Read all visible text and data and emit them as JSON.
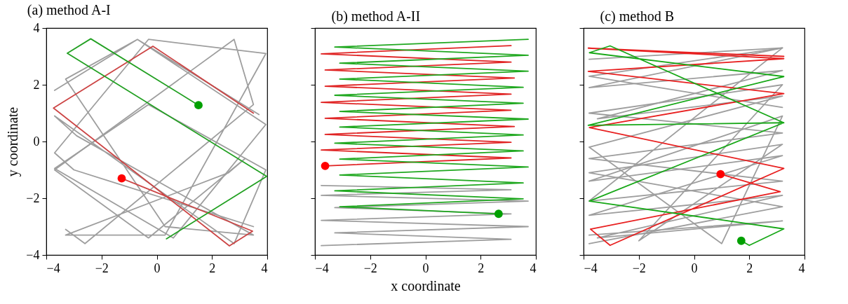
{
  "chart_data": [
    {
      "type": "line",
      "title": "(a) method A-I",
      "ylabel": "y coordinate",
      "xlim": [
        -4,
        4
      ],
      "ylim": [
        -4,
        4
      ],
      "xticks": [
        -4,
        -2,
        0,
        2,
        4
      ],
      "yticks": [
        -4,
        -2,
        0,
        2,
        4
      ],
      "series": [
        {
          "color": "#9e9e9e",
          "x": [
            -3.7,
            -0.7,
            3.95,
            0.6,
            -3.7,
            -0.3,
            3.95,
            2.8,
            -3.7,
            -2.9,
            3.5,
            0.3,
            -3.3,
            -0.7,
            3.7
          ],
          "values": [
            1.8,
            3.6,
            0.6,
            -3.4,
            -0.95,
            1.3,
            -1.0,
            -3.6,
            0.9,
            0.2,
            -3.3,
            -3.0,
            2.2,
            3.6,
            0.95
          ]
        },
        {
          "color": "#9e9e9e",
          "x": [
            -3.3,
            -2.6,
            3.5,
            2.8,
            -3.7,
            -0.3,
            3.2,
            2.6,
            -3.3,
            0.3,
            3.95,
            -0.3,
            -3.7,
            -3.0,
            3.5
          ],
          "values": [
            -3.1,
            -3.6,
            1.3,
            3.6,
            -1.0,
            -3.4,
            -0.6,
            -1.1,
            -3.3,
            -3.3,
            3.1,
            3.6,
            -0.4,
            -1.0,
            -3.0
          ]
        },
        {
          "color": "#cc4444",
          "x": [
            -1.27,
            3.47,
            2.63,
            -3.74,
            -0.14,
            3.5
          ],
          "values": [
            -1.3,
            -3.16,
            -3.68,
            1.18,
            3.36,
            1.0
          ]
        },
        {
          "color": "#22a022",
          "x": [
            1.51,
            -2.39,
            -3.24,
            3.98,
            0.35
          ],
          "values": [
            1.28,
            3.62,
            3.11,
            -1.23,
            -3.43
          ]
        },
        {
          "type": "scatter",
          "color": "#ff0000",
          "x": [
            -1.27
          ],
          "values": [
            -1.3
          ]
        },
        {
          "type": "scatter",
          "color": "#00a000",
          "x": [
            1.51
          ],
          "values": [
            1.28
          ]
        }
      ]
    },
    {
      "type": "line",
      "title": "(b) method A-II",
      "xlabel": "x coordinate",
      "xlim": [
        -4,
        4
      ],
      "ylim": [
        -4,
        4
      ],
      "xticks": [
        -4,
        -2,
        0,
        2,
        4
      ],
      "yticks": [
        -4,
        -2,
        0,
        2,
        4
      ],
      "tick_labels": "x",
      "series": [
        {
          "color": "#9e9e9e",
          "x": [
            -3.77,
            3.1,
            -3.28,
            3.72,
            -3.77,
            3.1,
            -3.28,
            3.72,
            -3.77,
            3.1,
            -3.77
          ],
          "values": [
            -3.67,
            -3.45,
            -3.22,
            -3.0,
            -2.78,
            -2.55,
            -2.33,
            -2.1,
            -1.9,
            -1.7,
            -1.55
          ]
        },
        {
          "color": "#e02424",
          "x": [
            -3.63,
            3.1,
            -3.77,
            3.1,
            -3.63,
            3.22,
            -3.63,
            3.1,
            -3.77,
            3.1,
            -3.63,
            3.22,
            -3.63,
            3.1,
            -3.77,
            3.1
          ],
          "values": [
            -0.86,
            -0.58,
            -0.3,
            -0.03,
            0.25,
            0.53,
            0.82,
            1.1,
            1.38,
            1.67,
            1.95,
            2.24,
            2.52,
            2.8,
            3.09,
            3.38
          ]
        },
        {
          "color": "#20a820",
          "x": [
            2.65,
            -3.1,
            3.54,
            -3.28,
            3.54,
            -3.1,
            3.72,
            -3.1,
            3.54,
            -3.28,
            3.54,
            -3.1,
            3.72,
            -3.1,
            3.54,
            -3.28,
            3.54,
            -3.1,
            3.72,
            -3.1,
            3.72,
            -3.28,
            3.72
          ],
          "values": [
            -2.55,
            -2.3,
            -2.02,
            -1.74,
            -1.46,
            -1.18,
            -0.9,
            -0.62,
            -0.33,
            -0.06,
            0.23,
            0.51,
            0.79,
            1.06,
            1.35,
            1.63,
            1.91,
            2.2,
            2.48,
            2.76,
            3.04,
            3.33,
            3.6
          ]
        },
        {
          "type": "scatter",
          "color": "#ff0000",
          "x": [
            -3.63
          ],
          "values": [
            -0.86
          ]
        },
        {
          "type": "scatter",
          "color": "#00a000",
          "x": [
            2.65
          ],
          "values": [
            -2.55
          ]
        }
      ]
    },
    {
      "type": "line",
      "title": "(c) method B",
      "xlim": [
        -4,
        4
      ],
      "ylim": [
        -4,
        4
      ],
      "xticks": [
        -4,
        -2,
        0,
        2,
        4
      ],
      "yticks": [
        -4,
        -2,
        0,
        2,
        4
      ],
      "tick_labels": "x",
      "series": [
        {
          "color": "#9e9e9e",
          "x": [
            -3.8,
            3.2,
            -3.8,
            3.2,
            -3.5,
            3.2,
            -3.8,
            1.0,
            3.2,
            -3.8,
            3.2,
            -3.8,
            3.2,
            -3.5,
            3.2,
            -3.8
          ],
          "values": [
            2.9,
            3.3,
            1.9,
            2.5,
            0.8,
            1.6,
            -0.2,
            -3.6,
            0.9,
            -1.4,
            -0.5,
            -2.6,
            -1.9,
            -3.4,
            -2.8,
            -3.3
          ]
        },
        {
          "color": "#9e9e9e",
          "x": [
            -3.8,
            3.2,
            -3.8,
            3.2,
            -2.0,
            3.2,
            -3.8,
            3.2,
            -3.8,
            3.2,
            -3.8,
            3.2,
            -3.8,
            3.2
          ],
          "values": [
            -3.6,
            -2.3,
            -1.1,
            -0.1,
            -3.5,
            2.0,
            1.0,
            0.3,
            -0.6,
            -1.4,
            -2.1,
            3.3,
            2.3,
            1.2
          ]
        },
        {
          "color": "#e82020",
          "x": [
            0.96,
            3.12,
            -3.75,
            -3.04,
            3.25,
            -3.79,
            3.25,
            -3.83,
            3.25,
            -3.83,
            3.25
          ],
          "values": [
            -1.15,
            -1.77,
            -3.09,
            -3.66,
            -0.95,
            0.49,
            1.69,
            2.47,
            2.92,
            3.29,
            3.0
          ]
        },
        {
          "color": "#18a818",
          "x": [
            1.71,
            2.0,
            3.25,
            -3.79,
            3.25,
            -3.83,
            3.25,
            -3.79,
            -3.04,
            3.25
          ],
          "values": [
            -3.5,
            -3.66,
            -3.08,
            -2.1,
            0.66,
            0.57,
            2.29,
            3.13,
            3.37,
            0.66
          ]
        },
        {
          "type": "scatter",
          "color": "#ff0000",
          "x": [
            0.96
          ],
          "values": [
            -1.15
          ]
        },
        {
          "type": "scatter",
          "color": "#00a000",
          "x": [
            1.71
          ],
          "values": [
            -3.5
          ]
        }
      ]
    }
  ]
}
